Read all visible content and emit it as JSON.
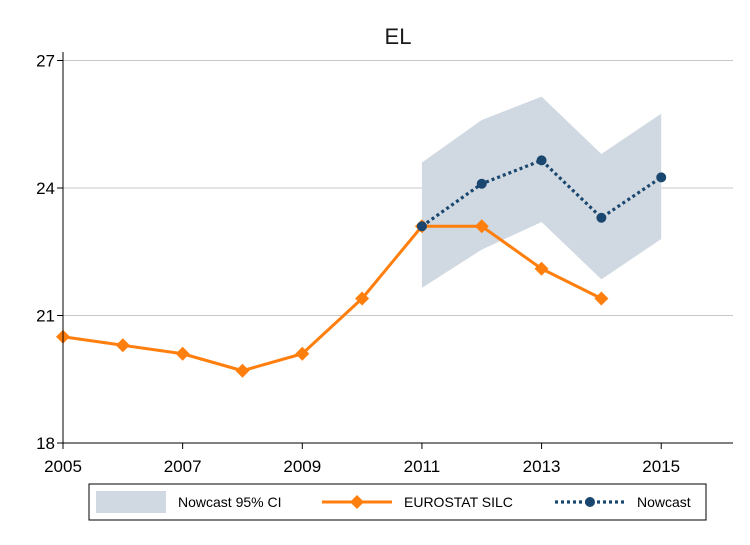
{
  "chart_data": {
    "type": "line",
    "title": "EL",
    "xlabel": "",
    "ylabel": "",
    "xlim": [
      2005,
      2016.2
    ],
    "ylim": [
      18,
      27.2
    ],
    "x_ticks": [
      2005,
      2007,
      2009,
      2011,
      2013,
      2015
    ],
    "y_ticks": [
      18,
      21,
      24,
      27
    ],
    "grid": "horizontal",
    "legend_position": "bottom",
    "series": [
      {
        "name": "EUROSTAT SILC",
        "color": "#ff7f0e",
        "marker": "diamond",
        "line_style": "solid",
        "x": [
          2005,
          2006,
          2007,
          2008,
          2009,
          2010,
          2011,
          2012,
          2013,
          2014
        ],
        "y": [
          20.5,
          20.3,
          20.1,
          19.7,
          20.1,
          21.4,
          23.1,
          23.1,
          22.1,
          21.4
        ]
      },
      {
        "name": "Nowcast",
        "color": "#1a476f",
        "marker": "circle",
        "line_style": "dotted",
        "x": [
          2011,
          2012,
          2013,
          2014,
          2015
        ],
        "y": [
          23.1,
          24.1,
          24.65,
          23.3,
          24.25
        ]
      }
    ],
    "band": {
      "name": "Nowcast 95% CI",
      "color": "#d0d9e1",
      "x": [
        2011,
        2012,
        2013,
        2014,
        2015
      ],
      "lower": [
        21.65,
        22.55,
        23.2,
        21.85,
        22.8
      ],
      "upper": [
        24.6,
        25.6,
        26.15,
        24.8,
        25.75
      ]
    }
  }
}
